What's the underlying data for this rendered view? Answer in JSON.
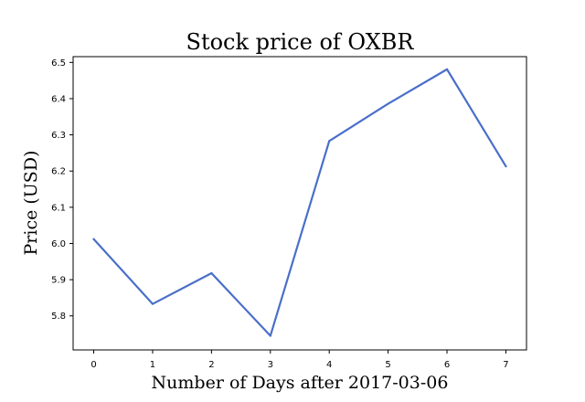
{
  "chart_data": {
    "type": "line",
    "title": "Stock price of OXBR",
    "xlabel": "Number of Days after 2017-03-06",
    "ylabel": "Price (USD)",
    "x": [
      0,
      1,
      2,
      3,
      4,
      5,
      6,
      7
    ],
    "series": [
      {
        "values": [
          6.012,
          5.833,
          5.918,
          5.745,
          6.283,
          6.386,
          6.481,
          6.213
        ],
        "color": "#4a6fc9"
      }
    ],
    "xticks": [
      "0",
      "1",
      "2",
      "3",
      "4",
      "5",
      "6",
      "7"
    ],
    "yticks": [
      "5.8",
      "5.9",
      "6.0",
      "6.1",
      "6.2",
      "6.3",
      "6.4",
      "6.5"
    ],
    "xlim": [
      -0.35,
      7.35
    ],
    "ylim": [
      5.706,
      6.516
    ],
    "grid": false,
    "legend": "none"
  }
}
